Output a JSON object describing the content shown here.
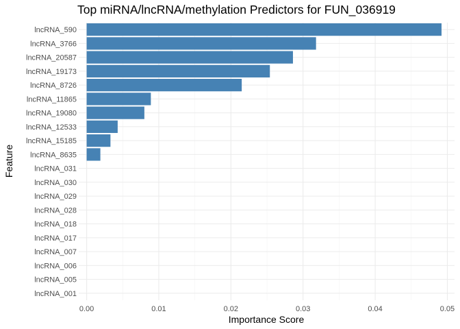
{
  "chart_data": {
    "type": "bar",
    "orientation": "horizontal",
    "title": "Top miRNA/lncRNA/methylation Predictors for FUN_036919",
    "xlabel": "Importance Score",
    "ylabel": "Feature",
    "xlim": [
      -0.0011,
      0.051
    ],
    "xticks": [
      0.0,
      0.01,
      0.02,
      0.03,
      0.04,
      0.05
    ],
    "xtick_labels": [
      "0.00",
      "0.01",
      "0.02",
      "0.03",
      "0.04",
      "0.05"
    ],
    "bar_color": "#4682B4",
    "grid": true,
    "categories": [
      "lncRNA_590",
      "lncRNA_3766",
      "lncRNA_20587",
      "lncRNA_19173",
      "lncRNA_8726",
      "lncRNA_11865",
      "lncRNA_19080",
      "lncRNA_12533",
      "lncRNA_15185",
      "lncRNA_8635",
      "lncRNA_031",
      "lncRNA_030",
      "lncRNA_029",
      "lncRNA_028",
      "lncRNA_018",
      "lncRNA_017",
      "lncRNA_007",
      "lncRNA_006",
      "lncRNA_005",
      "lncRNA_001"
    ],
    "values": [
      0.0492,
      0.0318,
      0.0286,
      0.0254,
      0.0215,
      0.0089,
      0.008,
      0.0043,
      0.0033,
      0.0019,
      0,
      0,
      0,
      0,
      0,
      0,
      0,
      0,
      0,
      0
    ]
  }
}
